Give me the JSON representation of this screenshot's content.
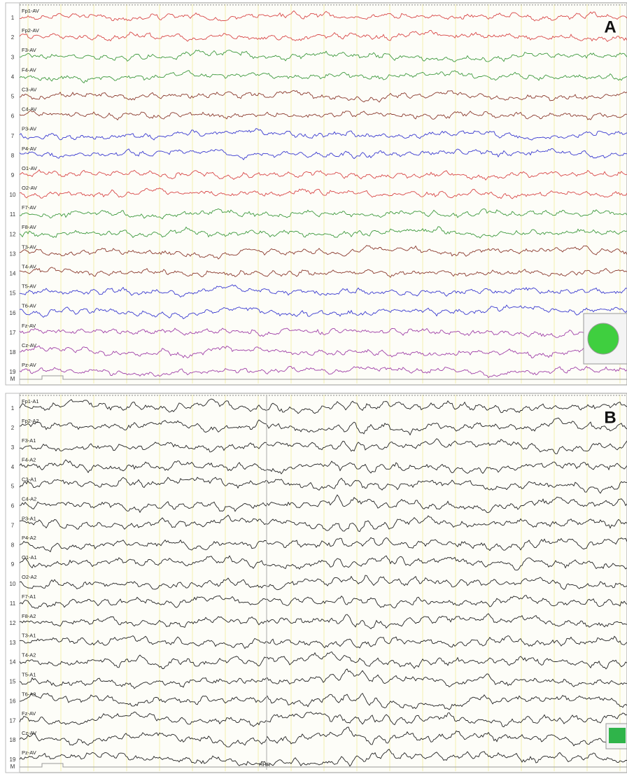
{
  "panels": [
    {
      "letter": "A",
      "bottom_label": "M",
      "channels": [
        {
          "number": "1",
          "label": "Fp1-AV",
          "color": "#d94848"
        },
        {
          "number": "2",
          "label": "Fp2-AV",
          "color": "#d94848"
        },
        {
          "number": "3",
          "label": "F3-AV",
          "color": "#3f9a3f"
        },
        {
          "number": "4",
          "label": "F4-AV",
          "color": "#3f9a3f"
        },
        {
          "number": "5",
          "label": "C3-AV",
          "color": "#8b3a2e"
        },
        {
          "number": "6",
          "label": "C4-AV",
          "color": "#8b3a2e"
        },
        {
          "number": "7",
          "label": "P3-AV",
          "color": "#3a3ad0"
        },
        {
          "number": "8",
          "label": "P4-AV",
          "color": "#3a3ad0"
        },
        {
          "number": "9",
          "label": "O1-AV",
          "color": "#d94848"
        },
        {
          "number": "10",
          "label": "O2-AV",
          "color": "#d94848"
        },
        {
          "number": "11",
          "label": "F7-AV",
          "color": "#3f9a3f"
        },
        {
          "number": "12",
          "label": "F8-AV",
          "color": "#3f9a3f"
        },
        {
          "number": "13",
          "label": "T3-AV",
          "color": "#8b3a2e"
        },
        {
          "number": "14",
          "label": "T4-AV",
          "color": "#8b3a2e"
        },
        {
          "number": "15",
          "label": "T5-AV",
          "color": "#3a3ad0"
        },
        {
          "number": "16",
          "label": "T6-AV",
          "color": "#3a3ad0"
        },
        {
          "number": "17",
          "label": "Fz-AV",
          "color": "#a040a8"
        },
        {
          "number": "18",
          "label": "Cz-AV",
          "color": "#a040a8"
        },
        {
          "number": "19",
          "label": "Pz-AV",
          "color": "#a040a8"
        }
      ]
    },
    {
      "letter": "B",
      "bottom_label": "M",
      "marker_label": "HHR",
      "channels": [
        {
          "number": "1",
          "label": "Fp1-A1",
          "color": "#222222"
        },
        {
          "number": "2",
          "label": "Fp2-A2",
          "color": "#222222"
        },
        {
          "number": "3",
          "label": "F3-A1",
          "color": "#222222"
        },
        {
          "number": "4",
          "label": "F4-A2",
          "color": "#222222"
        },
        {
          "number": "5",
          "label": "C3-A1",
          "color": "#222222"
        },
        {
          "number": "6",
          "label": "C4-A2",
          "color": "#222222"
        },
        {
          "number": "7",
          "label": "P3-A1",
          "color": "#222222"
        },
        {
          "number": "8",
          "label": "P4-A2",
          "color": "#222222"
        },
        {
          "number": "9",
          "label": "O1-A1",
          "color": "#222222"
        },
        {
          "number": "10",
          "label": "O2-A2",
          "color": "#222222"
        },
        {
          "number": "11",
          "label": "F7-A1",
          "color": "#222222"
        },
        {
          "number": "12",
          "label": "F8-A2",
          "color": "#222222"
        },
        {
          "number": "13",
          "label": "T3-A1",
          "color": "#222222"
        },
        {
          "number": "14",
          "label": "T4-A2",
          "color": "#222222"
        },
        {
          "number": "15",
          "label": "T5-A1",
          "color": "#222222"
        },
        {
          "number": "16",
          "label": "T6-A2",
          "color": "#222222"
        },
        {
          "number": "17",
          "label": "Fz-AV",
          "color": "#222222"
        },
        {
          "number": "18",
          "label": "Cz-AV",
          "color": "#222222"
        },
        {
          "number": "19",
          "label": "Pz-AV",
          "color": "#222222"
        }
      ]
    }
  ]
}
